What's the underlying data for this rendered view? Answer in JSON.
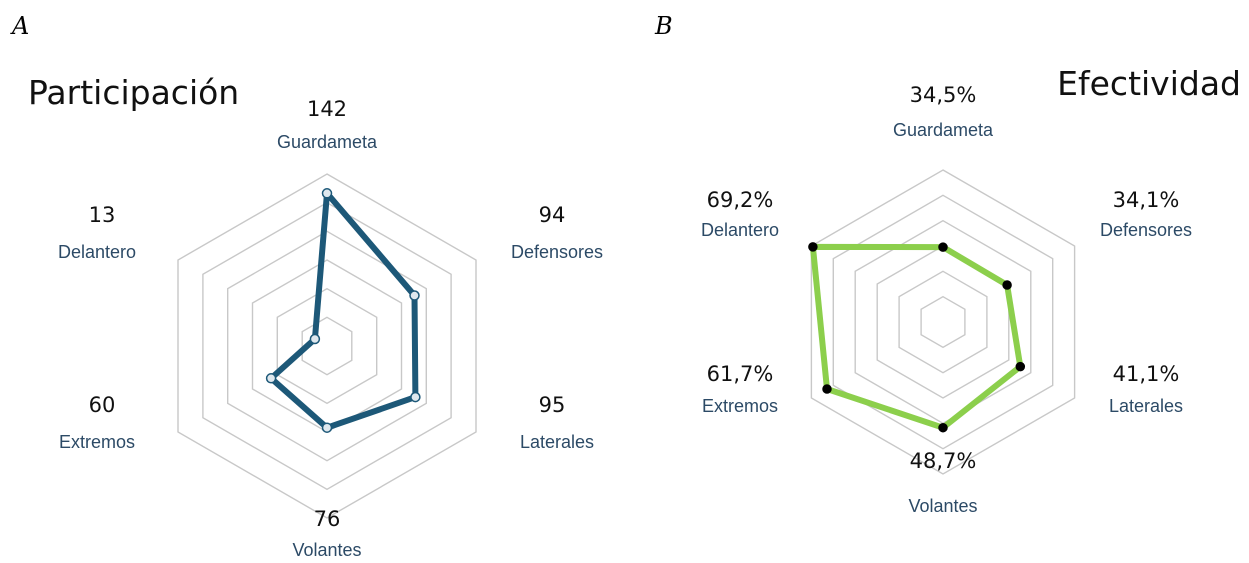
{
  "panels": {
    "a": {
      "letter": "A"
    },
    "b": {
      "letter": "B"
    }
  },
  "colors": {
    "series_a": "#1d5878",
    "series_b": "#8ccf4c",
    "marker_a_fill": "#dfe8ee",
    "marker_b_fill": "#000000",
    "grid": "#c8c8c8",
    "label": "#2c4a66"
  },
  "chart_data": [
    {
      "type": "radar",
      "title": "Participación",
      "axes": [
        "Guardameta",
        "Defensores",
        "Laterales",
        "Volantes",
        "Extremos",
        "Delantero"
      ],
      "values": [
        142,
        94,
        95,
        76,
        60,
        13
      ],
      "value_labels": [
        "142",
        "94",
        "95",
        "76",
        "60",
        "13"
      ],
      "rings": 6,
      "range": [
        0,
        160
      ],
      "grid": true
    },
    {
      "type": "radar",
      "title": "Efectividad",
      "axes": [
        "Guardameta",
        "Defensores",
        "Laterales",
        "Volantes",
        "Extremos",
        "Delantero"
      ],
      "values": [
        34.5,
        34.1,
        41.1,
        48.7,
        61.7,
        69.2
      ],
      "value_labels": [
        "34,5%",
        "34,1%",
        "41,1%",
        "48,7%",
        "61,7%",
        "69,2%"
      ],
      "rings": 6,
      "range": [
        0,
        70
      ],
      "grid": true
    }
  ]
}
